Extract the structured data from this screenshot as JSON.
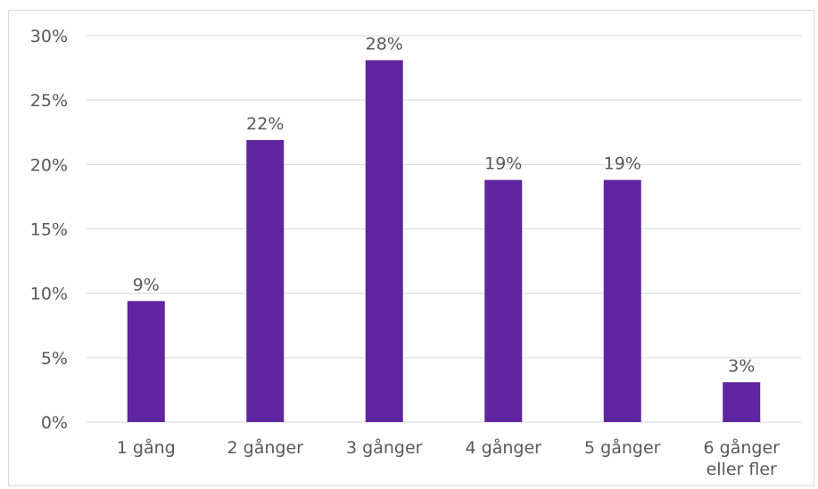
{
  "chart_data": {
    "type": "bar",
    "categories": [
      [
        "1 gång"
      ],
      [
        "2 gånger"
      ],
      [
        "3 gånger"
      ],
      [
        "4 gånger"
      ],
      [
        "5 gånger"
      ],
      [
        "6 gånger",
        "eller fler"
      ]
    ],
    "values": [
      9.4,
      21.9,
      28.1,
      18.8,
      18.8,
      3.1
    ],
    "data_labels": [
      "9%",
      "22%",
      "28%",
      "19%",
      "19%",
      "3%"
    ],
    "y_ticks": [
      0,
      5,
      10,
      15,
      20,
      25,
      30
    ],
    "y_tick_labels": [
      "0%",
      "5%",
      "10%",
      "15%",
      "20%",
      "25%",
      "30%"
    ],
    "ylim": [
      0,
      30
    ],
    "grid": true,
    "colors": {
      "bar": "#5f259f",
      "grid": "#d9d9d9",
      "text": "#595959"
    }
  }
}
